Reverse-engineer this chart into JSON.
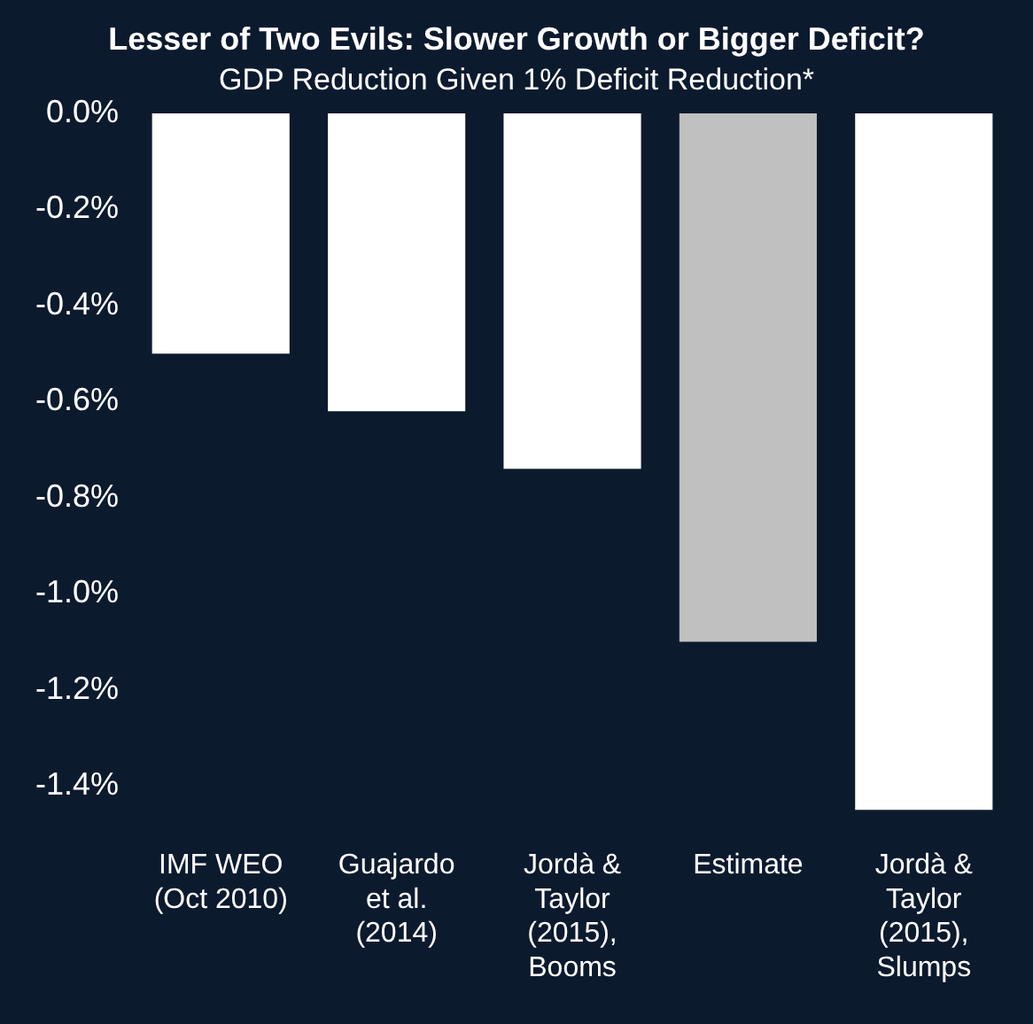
{
  "chart_data": {
    "type": "bar",
    "title": "Lesser of Two Evils: Slower Growth or Bigger Deficit?",
    "subtitle": "GDP Reduction Given 1% Deficit Reduction*",
    "categories": [
      "IMF WEO (Oct 2010)",
      "Guajardo et al. (2014)",
      "Jordà & Taylor (2015), Booms",
      "Estimate",
      "Jordà & Taylor (2015), Slumps"
    ],
    "values": [
      -0.5,
      -0.62,
      -0.74,
      -1.1,
      -1.45
    ],
    "colors": [
      "#ffffff",
      "#ffffff",
      "#ffffff",
      "#c0c0c0",
      "#ffffff"
    ],
    "ylim": [
      -1.45,
      0
    ],
    "yticks": [
      {
        "value": 0,
        "label": "0.0%"
      },
      {
        "value": -0.2,
        "label": "-0.2%"
      },
      {
        "value": -0.4,
        "label": "-0.4%"
      },
      {
        "value": -0.6,
        "label": "-0.6%"
      },
      {
        "value": -0.8,
        "label": "-0.8%"
      },
      {
        "value": -1.0,
        "label": "-1.0%"
      },
      {
        "value": -1.2,
        "label": "-1.2%"
      },
      {
        "value": -1.4,
        "label": "-1.4%"
      }
    ],
    "grid": false,
    "legend": false
  }
}
